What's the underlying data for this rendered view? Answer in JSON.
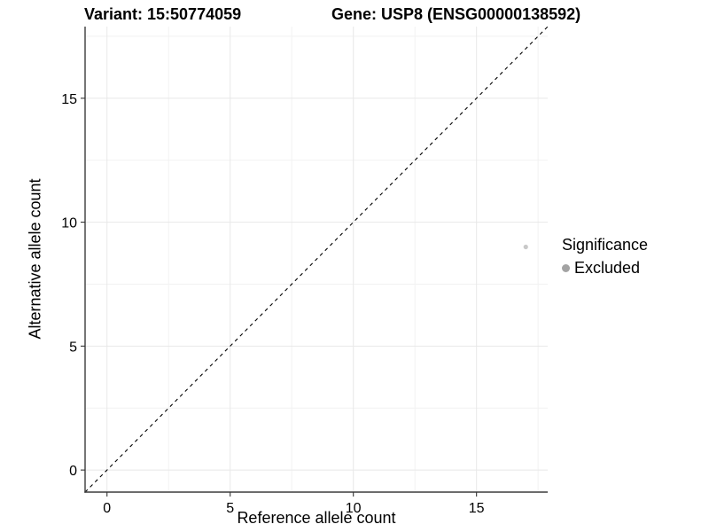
{
  "chart_data": {
    "type": "scatter",
    "title_left": "Variant: 15:50774059",
    "title_right": "Gene: USP8 (ENSG00000138592)",
    "xlabel": "Reference allele count",
    "ylabel": "Alternative allele count",
    "xlim": [
      -0.89,
      17.89
    ],
    "ylim": [
      -0.89,
      17.89
    ],
    "x_ticks": [
      0,
      5,
      10,
      15
    ],
    "y_ticks": [
      0,
      5,
      10,
      15
    ],
    "minor_ticks": [
      2.5,
      7.5,
      12.5,
      17.5
    ],
    "grid": true,
    "points": [
      {
        "x": 17,
        "y": 9,
        "series": "Excluded"
      }
    ],
    "reference_line": {
      "slope": 1,
      "intercept": 0,
      "style": "dashed"
    },
    "legend": {
      "title": "Significance",
      "position": "right",
      "entries": [
        {
          "label": "Excluded",
          "color": "#a3a3a3"
        }
      ]
    },
    "colors": {
      "background": "#ffffff",
      "point": "#c9c9c9",
      "grid_major": "#e8e8e8",
      "grid_minor": "#f2f2f2",
      "axis_line": "#3c3c3c",
      "tick_mark": "#333333",
      "reference_line": "#000000",
      "text": "#000000"
    }
  }
}
